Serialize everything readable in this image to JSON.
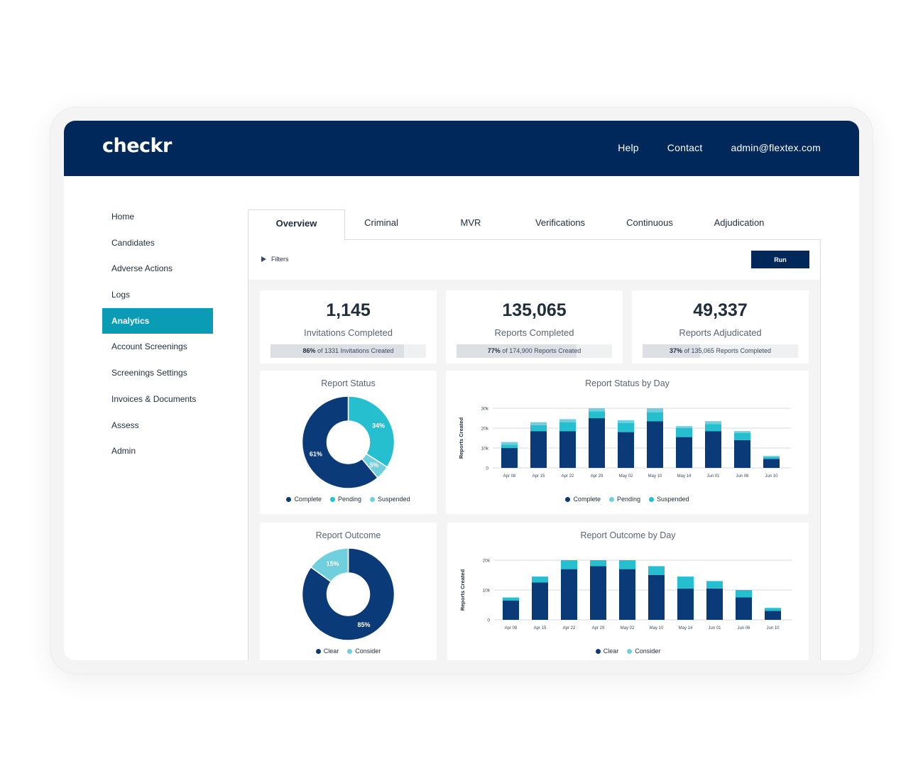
{
  "brand": {
    "logo": "checkr"
  },
  "topnav": {
    "help": "Help",
    "contact": "Contact",
    "account": "admin@flextex.com"
  },
  "sidebar": {
    "items": [
      {
        "label": "Home",
        "active": false
      },
      {
        "label": "Candidates",
        "active": false
      },
      {
        "label": "Adverse Actions",
        "active": false
      },
      {
        "label": "Logs",
        "active": false
      },
      {
        "label": "Analytics",
        "active": true
      },
      {
        "label": "Account Screenings",
        "active": false
      },
      {
        "label": "Screenings Settings",
        "active": false
      },
      {
        "label": "Invoices & Documents",
        "active": false
      },
      {
        "label": "Assess",
        "active": false
      },
      {
        "label": "Admin",
        "active": false
      }
    ]
  },
  "tabs": [
    {
      "label": "Overview",
      "active": true
    },
    {
      "label": "Criminal",
      "active": false
    },
    {
      "label": "MVR",
      "active": false
    },
    {
      "label": "Verifications",
      "active": false
    },
    {
      "label": "Continuous",
      "active": false
    },
    {
      "label": "Adjudication",
      "active": false
    }
  ],
  "filters": {
    "label": "Filters",
    "run_label": "Run"
  },
  "stats": [
    {
      "value": "1,145",
      "label": "Invitations Completed",
      "percent": "86%",
      "detail": "of 1331 Invitations Created",
      "fraction": 0.86
    },
    {
      "value": "135,065",
      "label": "Reports Completed",
      "percent": "77%",
      "detail": "of 174,900 Reports Created",
      "fraction": 0.77
    },
    {
      "value": "49,337",
      "label": "Reports Adjudicated",
      "percent": "37%",
      "detail": "of 135,065 Reports Completed",
      "fraction": 0.37
    }
  ],
  "colors": {
    "navy": "#00285a",
    "primary": "#0a3a78",
    "teal": "#26bfd0",
    "light_teal": "#6fcfdc",
    "active_sidebar": "#0a9bb5"
  },
  "chart_data": [
    {
      "type": "pie",
      "title": "Report Status",
      "donut": true,
      "labels": [
        "Complete",
        "Pending",
        "Suspended"
      ],
      "values": [
        61,
        34,
        5
      ],
      "value_labels": [
        "61%",
        "34%",
        "5%"
      ],
      "colors": [
        "#0a3a78",
        "#26bfd0",
        "#6fcfdc"
      ],
      "legend_position": "bottom",
      "start_angle": 0,
      "slice_order": [
        1,
        2,
        0
      ]
    },
    {
      "type": "bar",
      "stacked": true,
      "title": "Report Status by Day",
      "ylabel": "Reports Created",
      "categories": [
        "Apr 08",
        "Apr 15",
        "Apr 22",
        "Apr 29",
        "May 02",
        "May 10",
        "May 14",
        "Jun 01",
        "Jun 06",
        "Jun 10"
      ],
      "yticks": [
        0,
        10000,
        20000,
        30000
      ],
      "ytick_labels": [
        "0",
        "10k",
        "20k",
        "30k"
      ],
      "ylim": [
        0,
        30000
      ],
      "grid": true,
      "legend": [
        "Complete",
        "Pending",
        "Suspended"
      ],
      "legend_colors": [
        "#0a3a78",
        "#6fcfdc",
        "#26bfd0"
      ],
      "series": [
        {
          "name": "Complete",
          "color": "#0a3a78",
          "values": [
            10000,
            18500,
            18500,
            25000,
            18000,
            23500,
            15500,
            18500,
            14000,
            4500
          ]
        },
        {
          "name": "Suspended",
          "color": "#26bfd0",
          "values": [
            1700,
            3000,
            4500,
            3500,
            4500,
            4500,
            4500,
            3500,
            3500,
            1000
          ]
        },
        {
          "name": "Pending",
          "color": "#6fcfdc",
          "values": [
            1300,
            1500,
            1500,
            1500,
            1500,
            2000,
            1000,
            1500,
            1000,
            500
          ]
        }
      ],
      "legend_position": "bottom"
    },
    {
      "type": "pie",
      "title": "Report Outcome",
      "donut": true,
      "labels": [
        "Clear",
        "Consider"
      ],
      "values": [
        85,
        15
      ],
      "value_labels": [
        "85%",
        "15%"
      ],
      "colors": [
        "#0a3a78",
        "#6fcfdc"
      ],
      "legend_position": "bottom",
      "start_angle": 0,
      "slice_order": [
        0,
        1
      ]
    },
    {
      "type": "bar",
      "stacked": true,
      "title": "Report Outcome by Day",
      "ylabel": "Reports Created",
      "categories": [
        "Apr 08",
        "Apr 15",
        "Apr 22",
        "Apr 29",
        "May 02",
        "May 10",
        "May 14",
        "Jun 01",
        "Jun 06",
        "Jun 10"
      ],
      "yticks": [
        0,
        10000,
        20000
      ],
      "ytick_labels": [
        "0",
        "10k",
        "20k"
      ],
      "ylim": [
        0,
        20000
      ],
      "grid": true,
      "legend": [
        "Clear",
        "Consider"
      ],
      "legend_colors": [
        "#0a3a78",
        "#6fcfdc"
      ],
      "series": [
        {
          "name": "Clear",
          "color": "#0a3a78",
          "values": [
            6500,
            12500,
            17000,
            18000,
            17000,
            15000,
            10500,
            10500,
            7500,
            3000
          ]
        },
        {
          "name": "Consider",
          "color": "#26bfd0",
          "values": [
            1000,
            2000,
            3000,
            2000,
            3000,
            3000,
            4000,
            2500,
            2500,
            1000
          ]
        }
      ],
      "legend_position": "bottom"
    }
  ]
}
